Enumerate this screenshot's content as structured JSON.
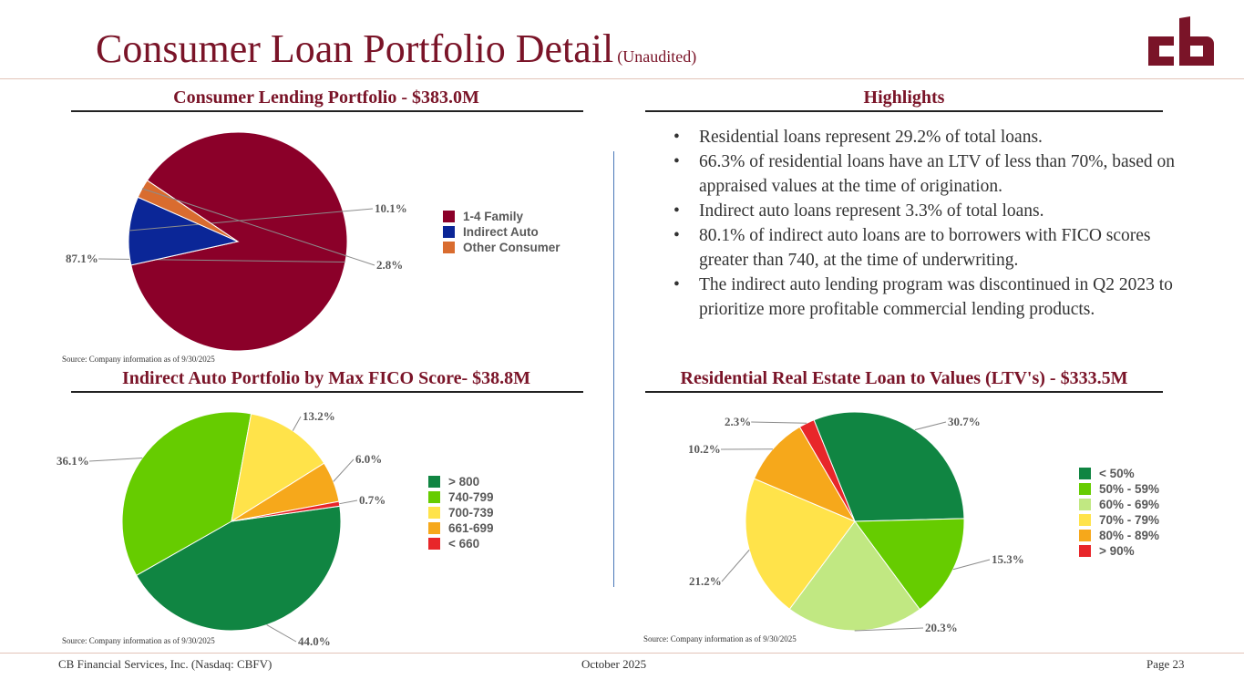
{
  "header": {
    "title": "Consumer Loan Portfolio Detail",
    "subtitle": "(Unaudited)",
    "logo_text": "cb"
  },
  "colors": {
    "brand": "#7a1428"
  },
  "sections": {
    "consumer": {
      "heading": "Consumer Lending Portfolio - $383.0M",
      "source": "Source: Company information as of 9/30/2025"
    },
    "highlights": {
      "heading": "Highlights",
      "bullets": [
        "Residential loans represent 29.2% of total loans.",
        "66.3% of residential loans have an LTV of less than 70%, based on appraised values at the time of origination.",
        "Indirect auto loans represent 3.3% of total loans.",
        "80.1% of indirect auto loans are to borrowers with FICO scores greater than 740, at the time of underwriting.",
        "The indirect auto lending program was discontinued in Q2 2023 to prioritize more profitable commercial lending products."
      ]
    },
    "fico": {
      "heading": "Indirect Auto Portfolio by Max FICO Score- $38.8M",
      "source": "Source: Company information as of 9/30/2025"
    },
    "ltv": {
      "heading": "Residential Real Estate Loan to Values (LTV's) - $333.5M",
      "source": "Source: Company information as of 9/30/2025"
    }
  },
  "chart_data": [
    {
      "type": "pie",
      "title": "Consumer Lending Portfolio - $383.0M",
      "categories": [
        "1-4 Family",
        "Indirect Auto",
        "Other Consumer"
      ],
      "values": [
        87.1,
        10.1,
        2.8
      ],
      "labels": [
        "87.1%",
        "10.1%",
        "2.8%"
      ],
      "colors": [
        "#8b0029",
        "#0b2697",
        "#d96c2f"
      ],
      "legend": "right"
    },
    {
      "type": "pie",
      "title": "Indirect Auto Portfolio by Max FICO Score- $38.8M",
      "categories": [
        "> 800",
        "740-799",
        "700-739",
        "661-699",
        "< 660"
      ],
      "values": [
        44.0,
        36.1,
        13.2,
        6.0,
        0.7
      ],
      "labels": [
        "44.0%",
        "36.1%",
        "13.2%",
        "6.0%",
        "0.7%"
      ],
      "colors": [
        "#108542",
        "#66cc00",
        "#ffe34a",
        "#f6a81b",
        "#e8262a"
      ],
      "legend": "right"
    },
    {
      "type": "pie",
      "title": "Residential Real Estate Loan to Values (LTV's) - $333.5M",
      "categories": [
        "< 50%",
        "50% - 59%",
        "60% - 69%",
        "70% - 79%",
        "80% - 89%",
        "> 90%"
      ],
      "values": [
        30.7,
        15.3,
        20.3,
        21.2,
        10.2,
        2.3
      ],
      "labels": [
        "30.7%",
        "15.3%",
        "20.3%",
        "21.2%",
        "10.2%",
        "2.3%"
      ],
      "colors": [
        "#108542",
        "#66cc00",
        "#c1e882",
        "#ffe34a",
        "#f6a81b",
        "#e8262a"
      ],
      "legend": "right"
    }
  ],
  "footer": {
    "company": "CB Financial Services, Inc. (Nasdaq: CBFV)",
    "date": "October 2025",
    "page": "Page 23"
  }
}
